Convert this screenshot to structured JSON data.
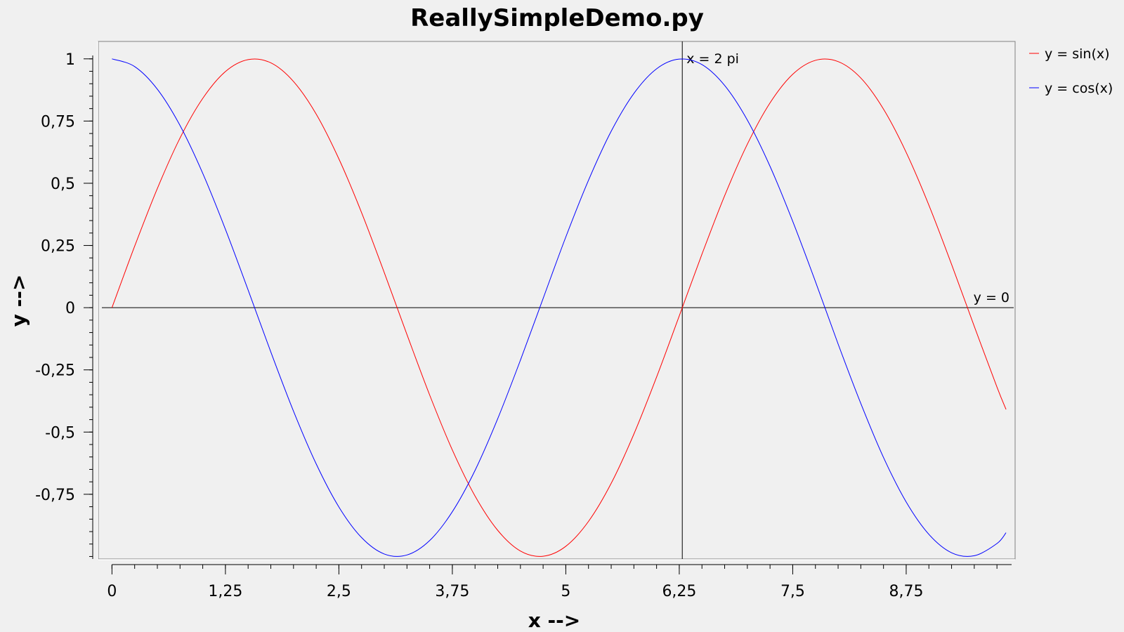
{
  "chart_data": {
    "type": "line",
    "title": "ReallySimpleDemo.py",
    "xlabel": "x -->",
    "ylabel": "y -->",
    "xlim": [
      -0.15,
      9.95
    ],
    "ylim": [
      -1.01,
      1.07
    ],
    "x_ticks": [
      0,
      1.25,
      2.5,
      3.75,
      5,
      6.25,
      7.5,
      8.75
    ],
    "x_tick_labels": [
      "0",
      "1,25",
      "2,5",
      "3,75",
      "5",
      "6,25",
      "7,5",
      "8,75"
    ],
    "y_ticks": [
      1,
      0.75,
      0.5,
      0.25,
      0,
      -0.25,
      -0.5,
      -0.75
    ],
    "y_tick_labels": [
      "1",
      "0,75",
      "0,5",
      "0,25",
      "0",
      "-0,25",
      "-0,5",
      "-0,75"
    ],
    "grid": false,
    "legend_position": "right",
    "series": [
      {
        "name": "y = sin(x)",
        "color": "#ff0000",
        "x": [
          0,
          0.25,
          0.5,
          0.75,
          1,
          1.25,
          1.5,
          1.75,
          2,
          2.25,
          2.5,
          2.75,
          3,
          3.25,
          3.5,
          3.75,
          4,
          4.25,
          4.5,
          4.75,
          5,
          5.25,
          5.5,
          5.75,
          6,
          6.25,
          6.5,
          6.75,
          7,
          7.25,
          7.5,
          7.75,
          8,
          8.25,
          8.5,
          8.75,
          9,
          9.25,
          9.5,
          9.75,
          10
        ],
        "y": [
          0,
          0.247,
          0.479,
          0.682,
          0.841,
          0.949,
          0.997,
          0.984,
          0.909,
          0.778,
          0.598,
          0.382,
          0.141,
          -0.108,
          -0.351,
          -0.572,
          -0.757,
          -0.895,
          -0.978,
          -0.999,
          -0.959,
          -0.859,
          -0.706,
          -0.508,
          -0.279,
          -0.033,
          0.215,
          0.45,
          0.657,
          0.823,
          0.938,
          0.994,
          0.989,
          0.923,
          0.798,
          0.624,
          0.412,
          0.174,
          -0.075,
          -0.319,
          -0.544
        ]
      },
      {
        "name": "y = cos(x)",
        "color": "#0000ff",
        "x": [
          0,
          0.25,
          0.5,
          0.75,
          1,
          1.25,
          1.5,
          1.75,
          2,
          2.25,
          2.5,
          2.75,
          3,
          3.25,
          3.5,
          3.75,
          4,
          4.25,
          4.5,
          4.75,
          5,
          5.25,
          5.5,
          5.75,
          6,
          6.25,
          6.5,
          6.75,
          7,
          7.25,
          7.5,
          7.75,
          8,
          8.25,
          8.5,
          8.75,
          9,
          9.25,
          9.5,
          9.75,
          10
        ],
        "y": [
          1,
          0.969,
          0.878,
          0.732,
          0.54,
          0.315,
          0.071,
          -0.178,
          -0.416,
          -0.628,
          -0.801,
          -0.924,
          -0.99,
          -0.994,
          -0.936,
          -0.82,
          -0.654,
          -0.446,
          -0.211,
          0.037,
          0.284,
          0.512,
          0.709,
          0.861,
          0.96,
          0.999,
          0.977,
          0.893,
          0.754,
          0.568,
          0.347,
          0.105,
          -0.146,
          -0.385,
          -0.602,
          -0.781,
          -0.911,
          -0.985,
          -0.997,
          -0.948,
          -0.839
        ]
      }
    ],
    "annotations": [
      {
        "type": "vline",
        "x": 6.2832,
        "label": "x = 2 pi"
      },
      {
        "type": "hline",
        "y": 0,
        "label": "y = 0"
      }
    ]
  }
}
